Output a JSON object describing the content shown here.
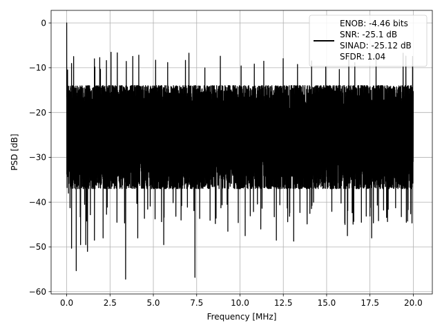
{
  "chart_data": {
    "type": "line",
    "title": "",
    "xlabel": "Frequency [MHz]",
    "ylabel": "PSD [dB]",
    "xlim": [
      -0.9,
      21.1
    ],
    "ylim": [
      -60.5,
      2.8
    ],
    "xticks": [
      0.0,
      2.5,
      5.0,
      7.5,
      10.0,
      12.5,
      15.0,
      17.5,
      20.0
    ],
    "xtick_labels": [
      "0.0",
      "2.5",
      "5.0",
      "7.5",
      "10.0",
      "12.5",
      "15.0",
      "17.5",
      "20.0"
    ],
    "yticks": [
      0,
      -10,
      -20,
      -30,
      -40,
      -50,
      -60
    ],
    "ytick_labels": [
      "0",
      "−10",
      "−20",
      "−30",
      "−40",
      "−50",
      "−60"
    ],
    "grid": true,
    "legend_position": "top-right",
    "legend": [
      "ENOB: -4.46 bits",
      "SNR: -25.1 dB",
      "SINAD: -25.12 dB",
      "SFDR: 1.04"
    ],
    "series": [
      {
        "color": "#000000",
        "noise": {
          "x_start": 0.0,
          "x_end": 20.0,
          "typical_max": -14,
          "typical_min": -37,
          "peak_max": -6.5
        },
        "spikes": [
          {
            "x": 0.0,
            "y": 0
          },
          {
            "x": 0.05,
            "y": -10.5
          },
          {
            "x": 0.1,
            "y": -38
          },
          {
            "x": 0.28,
            "y": -50.3
          },
          {
            "x": 0.55,
            "y": -55.3
          },
          {
            "x": 0.8,
            "y": -49.5
          },
          {
            "x": 1.1,
            "y": -49.5
          },
          {
            "x": 1.2,
            "y": -51
          },
          {
            "x": 1.6,
            "y": -48.5
          },
          {
            "x": 2.1,
            "y": -48
          },
          {
            "x": 2.9,
            "y": -44.5
          },
          {
            "x": 3.4,
            "y": -57.2
          },
          {
            "x": 4.1,
            "y": -48
          },
          {
            "x": 5.6,
            "y": -49.5
          },
          {
            "x": 6.6,
            "y": -44
          },
          {
            "x": 7.4,
            "y": -56.8
          },
          {
            "x": 9.3,
            "y": -46.5
          },
          {
            "x": 10.3,
            "y": -47.5
          },
          {
            "x": 11.2,
            "y": -46
          },
          {
            "x": 12.1,
            "y": -48.5
          },
          {
            "x": 13.1,
            "y": -48.7
          },
          {
            "x": 16.2,
            "y": -47.5
          },
          {
            "x": 17.6,
            "y": -48
          },
          {
            "x": 19.6,
            "y": -44.5
          }
        ]
      }
    ]
  }
}
